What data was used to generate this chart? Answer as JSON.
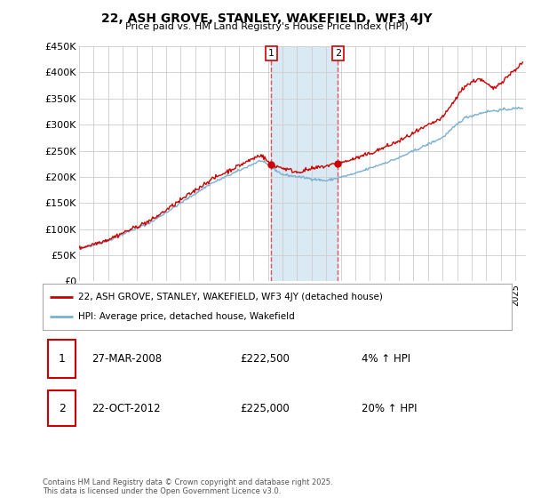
{
  "title": "22, ASH GROVE, STANLEY, WAKEFIELD, WF3 4JY",
  "subtitle": "Price paid vs. HM Land Registry's House Price Index (HPI)",
  "ylabel_ticks": [
    "£0",
    "£50K",
    "£100K",
    "£150K",
    "£200K",
    "£250K",
    "£300K",
    "£350K",
    "£400K",
    "£450K"
  ],
  "ytick_values": [
    0,
    50000,
    100000,
    150000,
    200000,
    250000,
    300000,
    350000,
    400000,
    450000
  ],
  "sale1_date": "27-MAR-2008",
  "sale1_price": 222500,
  "sale1_hpi": "4% ↑ HPI",
  "sale2_date": "22-OCT-2012",
  "sale2_price": 225000,
  "sale2_hpi": "20% ↑ HPI",
  "legend_line1": "22, ASH GROVE, STANLEY, WAKEFIELD, WF3 4JY (detached house)",
  "legend_line2": "HPI: Average price, detached house, Wakefield",
  "footer": "Contains HM Land Registry data © Crown copyright and database right 2025.\nThis data is licensed under the Open Government Licence v3.0.",
  "line_color_red": "#cc0000",
  "line_color_blue": "#7ab0d4",
  "sale1_x": 2008.23,
  "sale2_x": 2012.81,
  "xmin": 1995.0,
  "xmax": 2025.7,
  "ymin": 0,
  "ymax": 450000,
  "background_color": "#ffffff",
  "grid_color": "#cccccc",
  "shade_color": "#daeaf5"
}
